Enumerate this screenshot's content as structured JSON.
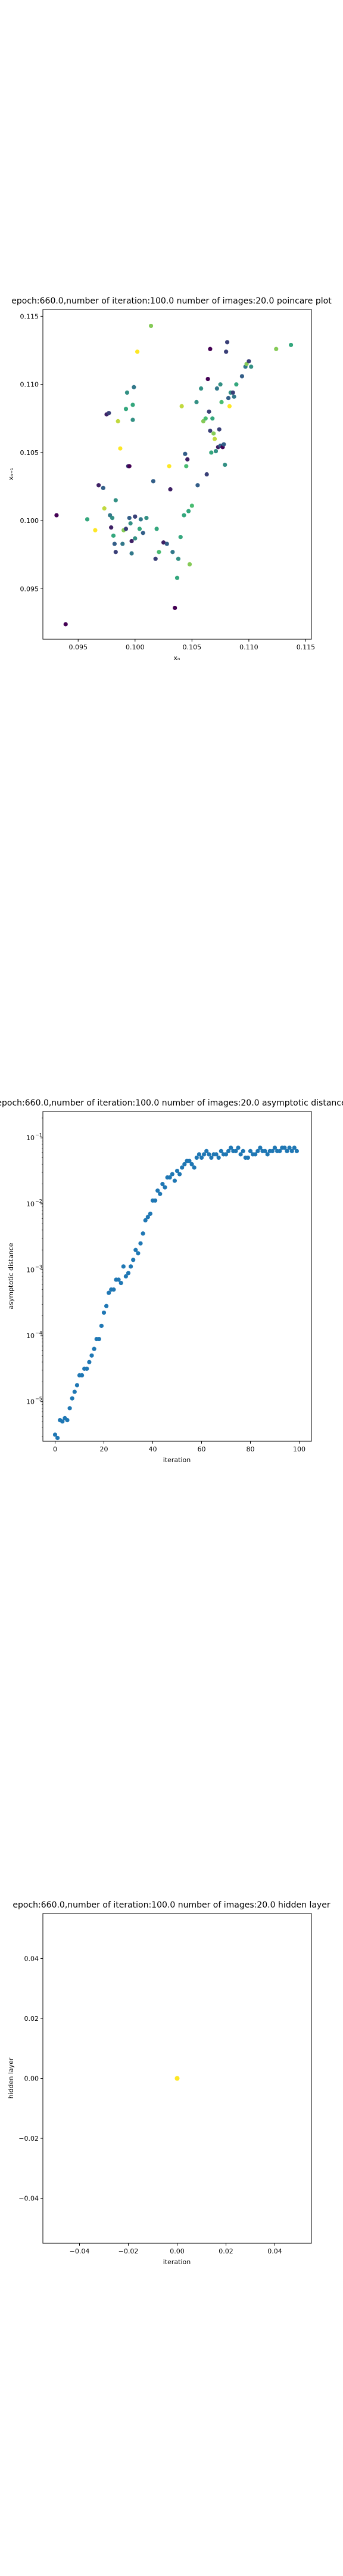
{
  "chart_data": [
    {
      "type": "scatter",
      "title": "epoch:660.0,number of iteration:100.0 number of images:20.0 poincare plot",
      "xlabel": "xₙ",
      "ylabel": "xₙ₊₁",
      "xlim": [
        0.0919,
        0.1155
      ],
      "ylim": [
        0.0913,
        0.1155
      ],
      "xticks": [
        0.095,
        0.1,
        0.105,
        0.11,
        0.115
      ],
      "xtick_labels": [
        "0.095",
        "0.100",
        "0.105",
        "0.110",
        "0.115"
      ],
      "yticks": [
        0.095,
        0.1,
        0.105,
        0.11,
        0.115
      ],
      "ytick_labels": [
        "0.095",
        "0.100",
        "0.105",
        "0.110",
        "0.115"
      ],
      "grid": false,
      "colormap": [
        "#440154",
        "#31688e",
        "#35b779",
        "#fde725"
      ],
      "points": [
        {
          "x": 0.0931,
          "y": 0.1004,
          "c": 0.0
        },
        {
          "x": 0.0939,
          "y": 0.0924,
          "c": 0.0
        },
        {
          "x": 0.0958,
          "y": 0.1001,
          "c": 0.6
        },
        {
          "x": 0.0965,
          "y": 0.0993,
          "c": 1.0
        },
        {
          "x": 0.0968,
          "y": 0.1026,
          "c": 0.1
        },
        {
          "x": 0.0972,
          "y": 0.1024,
          "c": 0.3
        },
        {
          "x": 0.0973,
          "y": 0.1009,
          "c": 0.9
        },
        {
          "x": 0.0975,
          "y": 0.1078,
          "c": 0.1
        },
        {
          "x": 0.0977,
          "y": 0.1079,
          "c": 0.2
        },
        {
          "x": 0.0978,
          "y": 0.1004,
          "c": 0.4
        },
        {
          "x": 0.0979,
          "y": 0.0995,
          "c": 0.1
        },
        {
          "x": 0.098,
          "y": 0.1002,
          "c": 0.5
        },
        {
          "x": 0.0981,
          "y": 0.0989,
          "c": 0.6
        },
        {
          "x": 0.0982,
          "y": 0.0983,
          "c": 0.3
        },
        {
          "x": 0.0983,
          "y": 0.1015,
          "c": 0.5
        },
        {
          "x": 0.0983,
          "y": 0.0977,
          "c": 0.2
        },
        {
          "x": 0.0985,
          "y": 0.1073,
          "c": 0.9
        },
        {
          "x": 0.0987,
          "y": 0.1053,
          "c": 1.0
        },
        {
          "x": 0.0989,
          "y": 0.0983,
          "c": 0.4
        },
        {
          "x": 0.099,
          "y": 0.0993,
          "c": 0.8
        },
        {
          "x": 0.0992,
          "y": 0.1082,
          "c": 0.6
        },
        {
          "x": 0.0993,
          "y": 0.1094,
          "c": 0.5
        },
        {
          "x": 0.0994,
          "y": 0.104,
          "c": 0.2
        },
        {
          "x": 0.0995,
          "y": 0.104,
          "c": 0.0
        },
        {
          "x": 0.0995,
          "y": 0.1002,
          "c": 0.3
        },
        {
          "x": 0.0996,
          "y": 0.0998,
          "c": 0.5
        },
        {
          "x": 0.0997,
          "y": 0.0976,
          "c": 0.4
        },
        {
          "x": 0.0998,
          "y": 0.1074,
          "c": 0.5
        },
        {
          "x": 0.0998,
          "y": 0.1085,
          "c": 0.6
        },
        {
          "x": 0.0999,
          "y": 0.1098,
          "c": 0.4
        },
        {
          "x": 0.1,
          "y": 0.0987,
          "c": 0.5
        },
        {
          "x": 0.1,
          "y": 0.1003,
          "c": 0.2
        },
        {
          "x": 0.1002,
          "y": 0.1124,
          "c": 1.0
        },
        {
          "x": 0.1004,
          "y": 0.0994,
          "c": 0.6
        },
        {
          "x": 0.1005,
          "y": 0.1001,
          "c": 0.4
        },
        {
          "x": 0.101,
          "y": 0.1002,
          "c": 0.5
        },
        {
          "x": 0.1014,
          "y": 0.1143,
          "c": 0.8
        },
        {
          "x": 0.1016,
          "y": 0.1029,
          "c": 0.3
        },
        {
          "x": 0.1018,
          "y": 0.0972,
          "c": 0.2
        },
        {
          "x": 0.1021,
          "y": 0.0977,
          "c": 0.7
        },
        {
          "x": 0.1025,
          "y": 0.0984,
          "c": 0.1
        },
        {
          "x": 0.1028,
          "y": 0.0983,
          "c": 0.3
        },
        {
          "x": 0.103,
          "y": 0.104,
          "c": 1.0
        },
        {
          "x": 0.1031,
          "y": 0.1023,
          "c": 0.1
        },
        {
          "x": 0.1033,
          "y": 0.0977,
          "c": 0.4
        },
        {
          "x": 0.1035,
          "y": 0.0936,
          "c": 0.0
        },
        {
          "x": 0.1037,
          "y": 0.0958,
          "c": 0.6
        },
        {
          "x": 0.1038,
          "y": 0.0972,
          "c": 0.5
        },
        {
          "x": 0.104,
          "y": 0.0988,
          "c": 0.6
        },
        {
          "x": 0.1041,
          "y": 0.1084,
          "c": 0.9
        },
        {
          "x": 0.1043,
          "y": 0.1004,
          "c": 0.6
        },
        {
          "x": 0.1044,
          "y": 0.1049,
          "c": 0.3
        },
        {
          "x": 0.1045,
          "y": 0.104,
          "c": 0.7
        },
        {
          "x": 0.1046,
          "y": 0.1045,
          "c": 0.1
        },
        {
          "x": 0.1048,
          "y": 0.0968,
          "c": 0.8
        },
        {
          "x": 0.105,
          "y": 0.1011,
          "c": 0.7
        },
        {
          "x": 0.1055,
          "y": 0.1026,
          "c": 0.3
        },
        {
          "x": 0.106,
          "y": 0.1073,
          "c": 0.8
        },
        {
          "x": 0.1062,
          "y": 0.1075,
          "c": 0.7
        },
        {
          "x": 0.1063,
          "y": 0.1034,
          "c": 0.2
        },
        {
          "x": 0.1064,
          "y": 0.1104,
          "c": 0.0
        },
        {
          "x": 0.1065,
          "y": 0.108,
          "c": 0.2
        },
        {
          "x": 0.1066,
          "y": 0.1126,
          "c": 0.0
        },
        {
          "x": 0.1067,
          "y": 0.105,
          "c": 0.6
        },
        {
          "x": 0.1068,
          "y": 0.1075,
          "c": 0.6
        },
        {
          "x": 0.1069,
          "y": 0.1064,
          "c": 0.8
        },
        {
          "x": 0.107,
          "y": 0.106,
          "c": 0.9
        },
        {
          "x": 0.1071,
          "y": 0.1051,
          "c": 0.5
        },
        {
          "x": 0.1072,
          "y": 0.1097,
          "c": 0.4
        },
        {
          "x": 0.1073,
          "y": 0.1054,
          "c": 0.1
        },
        {
          "x": 0.1074,
          "y": 0.1067,
          "c": 0.2
        },
        {
          "x": 0.1075,
          "y": 0.1055,
          "c": 0.3
        },
        {
          "x": 0.1076,
          "y": 0.1087,
          "c": 0.7
        },
        {
          "x": 0.1077,
          "y": 0.1054,
          "c": 0.0
        },
        {
          "x": 0.1078,
          "y": 0.1056,
          "c": 0.3
        },
        {
          "x": 0.1079,
          "y": 0.1041,
          "c": 0.5
        },
        {
          "x": 0.108,
          "y": 0.1124,
          "c": 0.2
        },
        {
          "x": 0.1081,
          "y": 0.1131,
          "c": 0.2
        },
        {
          "x": 0.1082,
          "y": 0.109,
          "c": 0.3
        },
        {
          "x": 0.1083,
          "y": 0.1084,
          "c": 1.0
        },
        {
          "x": 0.1084,
          "y": 0.1094,
          "c": 0.5
        },
        {
          "x": 0.1086,
          "y": 0.1094,
          "c": 0.2
        },
        {
          "x": 0.1087,
          "y": 0.1091,
          "c": 0.4
        },
        {
          "x": 0.1089,
          "y": 0.11,
          "c": 0.6
        },
        {
          "x": 0.1094,
          "y": 0.1106,
          "c": 0.3
        },
        {
          "x": 0.1097,
          "y": 0.1113,
          "c": 0.4
        },
        {
          "x": 0.1098,
          "y": 0.1115,
          "c": 0.8
        },
        {
          "x": 0.11,
          "y": 0.1117,
          "c": 0.2
        },
        {
          "x": 0.1102,
          "y": 0.1113,
          "c": 0.5
        },
        {
          "x": 0.1124,
          "y": 0.1126,
          "c": 0.8
        },
        {
          "x": 0.1137,
          "y": 0.1129,
          "c": 0.6
        },
        {
          "x": 0.1075,
          "y": 0.11,
          "c": 0.5
        },
        {
          "x": 0.1058,
          "y": 0.1097,
          "c": 0.5
        },
        {
          "x": 0.1054,
          "y": 0.1087,
          "c": 0.5
        },
        {
          "x": 0.1066,
          "y": 0.1066,
          "c": 0.2
        },
        {
          "x": 0.1007,
          "y": 0.0991,
          "c": 0.3
        },
        {
          "x": 0.0997,
          "y": 0.0985,
          "c": 0.1
        },
        {
          "x": 0.0992,
          "y": 0.0994,
          "c": 0.2
        },
        {
          "x": 0.1019,
          "y": 0.0994,
          "c": 0.6
        },
        {
          "x": 0.1047,
          "y": 0.1007,
          "c": 0.6
        }
      ]
    },
    {
      "type": "scatter",
      "title": "epoch:660.0,number of iteration:100.0  number of images:20.0 asymptotic distance",
      "xlabel": "iteration",
      "ylabel": "asymptotic distance",
      "yscale": "log",
      "xlim": [
        -5,
        105
      ],
      "ylim_exp": [
        -5.6,
        -0.6
      ],
      "xticks": [
        0,
        20,
        40,
        60,
        80,
        100
      ],
      "xtick_labels": [
        "0",
        "20",
        "40",
        "60",
        "80",
        "100"
      ],
      "yticks_exp": [
        -5,
        -4,
        -3,
        -2,
        -1
      ],
      "color": "#1f77b4",
      "grid": false,
      "x": [
        0,
        1,
        2,
        3,
        4,
        5,
        6,
        7,
        8,
        9,
        10,
        11,
        12,
        13,
        14,
        15,
        16,
        17,
        18,
        19,
        20,
        21,
        22,
        23,
        24,
        25,
        26,
        27,
        28,
        29,
        30,
        31,
        32,
        33,
        34,
        35,
        36,
        37,
        38,
        39,
        40,
        41,
        42,
        43,
        44,
        45,
        46,
        47,
        48,
        49,
        50,
        51,
        52,
        53,
        54,
        55,
        56,
        57,
        58,
        59,
        60,
        61,
        62,
        63,
        64,
        65,
        66,
        67,
        68,
        69,
        70,
        71,
        72,
        73,
        74,
        75,
        76,
        77,
        78,
        79,
        80,
        81,
        82,
        83,
        84,
        85,
        86,
        87,
        88,
        89,
        90,
        91,
        92,
        93,
        94,
        95,
        96,
        97,
        98,
        99
      ],
      "y_exp": [
        -5.5,
        -5.55,
        -5.28,
        -5.3,
        -5.25,
        -5.28,
        -5.1,
        -4.95,
        -4.85,
        -4.75,
        -4.6,
        -4.6,
        -4.5,
        -4.5,
        -4.4,
        -4.3,
        -4.2,
        -4.05,
        -4.05,
        -3.85,
        -3.65,
        -3.55,
        -3.35,
        -3.3,
        -3.3,
        -3.15,
        -3.15,
        -3.2,
        -2.95,
        -3.1,
        -3.05,
        -2.95,
        -2.85,
        -2.7,
        -2.75,
        -2.6,
        -2.45,
        -2.25,
        -2.2,
        -2.15,
        -1.95,
        -1.95,
        -1.8,
        -1.85,
        -1.7,
        -1.75,
        -1.6,
        -1.6,
        -1.55,
        -1.65,
        -1.5,
        -1.55,
        -1.45,
        -1.4,
        -1.35,
        -1.35,
        -1.4,
        -1.45,
        -1.3,
        -1.25,
        -1.3,
        -1.25,
        -1.2,
        -1.25,
        -1.3,
        -1.25,
        -1.25,
        -1.3,
        -1.2,
        -1.25,
        -1.25,
        -1.2,
        -1.15,
        -1.2,
        -1.2,
        -1.15,
        -1.25,
        -1.2,
        -1.3,
        -1.3,
        -1.2,
        -1.25,
        -1.25,
        -1.2,
        -1.15,
        -1.2,
        -1.2,
        -1.25,
        -1.2,
        -1.2,
        -1.15,
        -1.2,
        -1.2,
        -1.15,
        -1.15,
        -1.2,
        -1.15,
        -1.2,
        -1.15,
        -1.2
      ]
    },
    {
      "type": "scatter",
      "title": "epoch:660.0,number of iteration:100.0  number of images:20.0 hidden layer",
      "xlabel": "iteration",
      "ylabel": "hidden layer",
      "xlim": [
        -0.055,
        0.055
      ],
      "ylim": [
        -0.055,
        0.055
      ],
      "xticks": [
        -0.04,
        -0.02,
        0.0,
        0.02,
        0.04
      ],
      "xtick_labels": [
        "−0.04",
        "−0.02",
        "0.00",
        "0.02",
        "0.04"
      ],
      "yticks": [
        -0.04,
        -0.02,
        0.0,
        0.02,
        0.04
      ],
      "ytick_labels": [
        "−0.04",
        "−0.02",
        "0.00",
        "0.02",
        "0.04"
      ],
      "grid": false,
      "points": [
        {
          "x": 0.0,
          "y": 0.0,
          "color": "#fde725"
        }
      ]
    }
  ]
}
